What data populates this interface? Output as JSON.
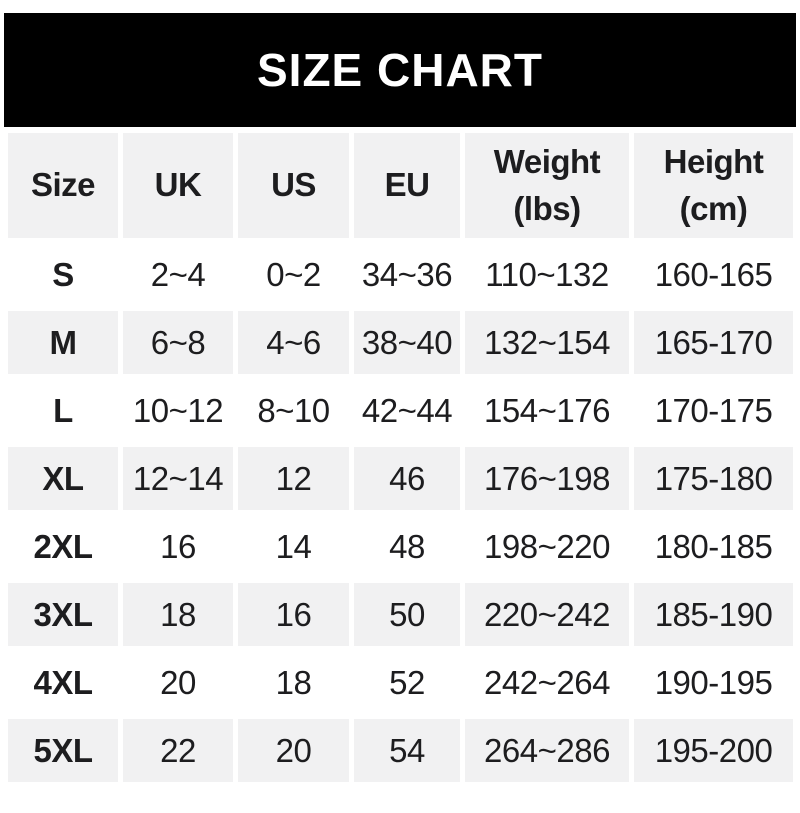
{
  "banner": {
    "title": "SIZE CHART",
    "background": "#000000",
    "text_color": "#ffffff"
  },
  "colors": {
    "row_alt_background": "#f1f1f2",
    "row_base_background": "#ffffff",
    "text": "#1d1d1f"
  },
  "header_display": [
    {
      "l1": "Size",
      "l2": ""
    },
    {
      "l1": "UK",
      "l2": ""
    },
    {
      "l1": "US",
      "l2": ""
    },
    {
      "l1": "EU",
      "l2": ""
    },
    {
      "l1": "Weight",
      "l2": "(lbs)"
    },
    {
      "l1": "Height",
      "l2": "(cm)"
    }
  ],
  "chart_data": {
    "type": "table",
    "title": "SIZE CHART",
    "columns": [
      "Size",
      "UK",
      "US",
      "EU",
      "Weight (lbs)",
      "Height (cm)"
    ],
    "rows": [
      [
        "S",
        "2~4",
        "0~2",
        "34~36",
        "110~132",
        "160-165"
      ],
      [
        "M",
        "6~8",
        "4~6",
        "38~40",
        "132~154",
        "165-170"
      ],
      [
        "L",
        "10~12",
        "8~10",
        "42~44",
        "154~176",
        "170-175"
      ],
      [
        "XL",
        "12~14",
        "12",
        "46",
        "176~198",
        "175-180"
      ],
      [
        "2XL",
        "16",
        "14",
        "48",
        "198~220",
        "180-185"
      ],
      [
        "3XL",
        "18",
        "16",
        "50",
        "220~242",
        "185-190"
      ],
      [
        "4XL",
        "20",
        "18",
        "52",
        "242~264",
        "190-195"
      ],
      [
        "5XL",
        "22",
        "20",
        "54",
        "264~286",
        "195-200"
      ]
    ]
  }
}
